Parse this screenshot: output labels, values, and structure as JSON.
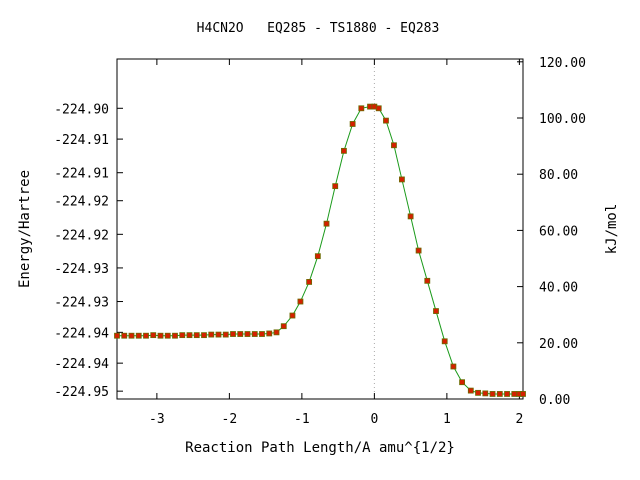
{
  "chart_data": {
    "type": "line",
    "title": "H4CN2O   EQ285 - TS1880 - EQ283",
    "xlabel": "Reaction Path Length/A amu^{1/2}",
    "ylabel": "Energy/Hartree",
    "y2label": "kJ/mol",
    "xlim": [
      -3.55,
      2.05
    ],
    "ylim": [
      -224.9514,
      -224.8907
    ],
    "y2lim": [
      0,
      121
    ],
    "x_ticks": [
      -3,
      -2,
      -1,
      0,
      1,
      2
    ],
    "x_tick_labels": [
      "-3",
      "-2",
      "-1",
      "0",
      "1",
      "2"
    ],
    "y_ticks": [
      -224.95,
      -224.945,
      -224.9395,
      -224.934,
      -224.928,
      -224.922,
      -224.916,
      -224.911,
      -224.905,
      -224.8995
    ],
    "y_tick_labels": [
      "-224.95",
      "-224.94",
      "-224.94",
      "-224.93",
      "-224.93",
      "-224.92",
      "-224.92",
      "-224.91",
      "-224.91",
      "-224.90"
    ],
    "y2_ticks": [
      0,
      20,
      40,
      60,
      80,
      100,
      120
    ],
    "y2_tick_labels": [
      "0.00",
      "20.00",
      "40.00",
      "60.00",
      "80.00",
      "100.00",
      "120.00"
    ],
    "grid": false,
    "marker_line_x": 0,
    "colors": {
      "line": "#1a9a1a",
      "marker": "#d42000",
      "marker_edge": "#6a6a00",
      "zero_line": "#aaaaaa"
    },
    "series": [
      {
        "x": [
          -3.55,
          -3.45,
          -3.35,
          -3.25,
          -3.15,
          -3.05,
          -2.95,
          -2.85,
          -2.75,
          -2.65,
          -2.55,
          -2.45,
          -2.35,
          -2.25,
          -2.15,
          -2.05,
          -1.95,
          -1.85,
          -1.75,
          -1.65,
          -1.55,
          -1.45,
          -1.35,
          -1.25,
          -1.13,
          -1.02,
          -0.9,
          -0.78,
          -0.66,
          -0.54,
          -0.42,
          -0.3,
          -0.18,
          -0.06,
          0.0,
          0.06,
          0.16,
          0.27,
          0.38,
          0.5,
          0.61,
          0.73,
          0.85,
          0.97,
          1.09,
          1.21,
          1.33,
          1.43,
          1.53,
          1.63,
          1.73,
          1.83,
          1.93,
          2.0,
          2.05
        ],
        "y": [
          -224.9401,
          -224.9401,
          -224.9401,
          -224.9401,
          -224.9401,
          -224.94,
          -224.9401,
          -224.9401,
          -224.9401,
          -224.94,
          -224.94,
          -224.94,
          -224.94,
          -224.9399,
          -224.9399,
          -224.9399,
          -224.9398,
          -224.9398,
          -224.9398,
          -224.9398,
          -224.9398,
          -224.9397,
          -224.9395,
          -224.9384,
          -224.9365,
          -224.934,
          -224.9305,
          -224.9259,
          -224.9201,
          -224.9134,
          -224.9071,
          -224.9023,
          -224.8995,
          -224.8992,
          -224.8992,
          -224.8995,
          -224.9017,
          -224.9061,
          -224.9122,
          -224.9188,
          -224.9249,
          -224.9303,
          -224.9357,
          -224.9411,
          -224.9456,
          -224.9484,
          -224.9499,
          -224.9503,
          -224.9504,
          -224.9505,
          -224.9505,
          -224.9505,
          -224.9505,
          -224.9505,
          -224.9505
        ]
      }
    ]
  }
}
